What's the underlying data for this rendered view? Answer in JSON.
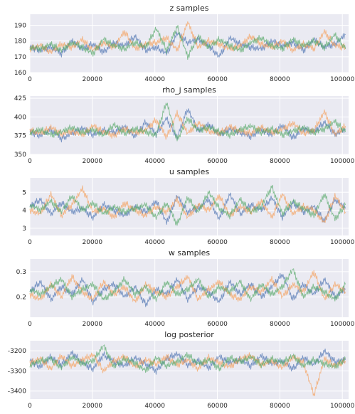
{
  "style": {
    "background": "#EAEAF2",
    "grid_color": "#ffffff",
    "chain_colors": [
      "#4C72B0",
      "#F5A05B",
      "#55A868"
    ]
  },
  "chart_data": [
    {
      "type": "line",
      "title": "z samples",
      "xlim": [
        0,
        102000
      ],
      "ylim": [
        160,
        197
      ],
      "x_ticks": [
        "0",
        "20000",
        "40000",
        "60000",
        "80000",
        "100000"
      ],
      "y_ticks": [
        "160",
        "170",
        "180",
        "190"
      ],
      "grid": true,
      "legend": "none",
      "series": [
        {
          "color": "#4C72B0",
          "values": [
            176,
            174,
            176,
            172,
            180,
            175,
            178,
            173,
            179,
            177,
            183,
            174,
            176,
            172,
            185,
            179,
            181,
            177,
            170,
            182,
            178,
            176,
            175,
            180,
            177,
            179,
            174,
            181,
            176,
            178,
            184
          ]
        },
        {
          "color": "#F5A05B",
          "values": [
            175,
            177,
            173,
            178,
            176,
            181,
            174,
            179,
            176,
            186,
            175,
            178,
            179,
            182,
            174,
            192,
            176,
            180,
            178,
            175,
            177,
            183,
            178,
            176,
            180,
            174,
            178,
            175,
            186,
            177,
            176
          ]
        },
        {
          "color": "#55A868",
          "values": [
            176,
            175,
            178,
            174,
            179,
            176,
            172,
            181,
            177,
            175,
            179,
            176,
            188,
            174,
            189,
            170,
            183,
            176,
            181,
            177,
            174,
            179,
            182,
            177,
            175,
            181,
            177,
            180,
            176,
            184,
            175
          ]
        }
      ]
    },
    {
      "type": "line",
      "title": "rho_j samples",
      "xlim": [
        0,
        102000
      ],
      "ylim": [
        350,
        428
      ],
      "x_ticks": [
        "0",
        "20000",
        "40000",
        "60000",
        "80000",
        "100000"
      ],
      "y_ticks": [
        "350",
        "375",
        "400",
        "425"
      ],
      "grid": true,
      "legend": "none",
      "series": [
        {
          "color": "#4C72B0",
          "values": [
            380,
            375,
            383,
            371,
            378,
            385,
            376,
            382,
            379,
            387,
            374,
            393,
            377,
            398,
            372,
            411,
            381,
            390,
            376,
            384,
            379,
            374,
            383,
            376,
            389,
            372,
            384,
            380,
            393,
            377,
            383
          ]
        },
        {
          "color": "#F5A05B",
          "values": [
            382,
            378,
            386,
            377,
            381,
            376,
            388,
            380,
            375,
            384,
            379,
            382,
            396,
            373,
            405,
            378,
            392,
            381,
            378,
            387,
            381,
            378,
            386,
            379,
            383,
            392,
            378,
            382,
            407,
            376,
            388
          ]
        },
        {
          "color": "#55A868",
          "values": [
            379,
            383,
            376,
            380,
            386,
            379,
            383,
            375,
            390,
            378,
            384,
            380,
            376,
            420,
            369,
            398,
            382,
            386,
            380,
            376,
            383,
            388,
            379,
            384,
            376,
            381,
            386,
            379,
            384,
            394,
            380
          ]
        }
      ]
    },
    {
      "type": "line",
      "title": "u samples",
      "xlim": [
        0,
        102000
      ],
      "ylim": [
        2.6,
        5.8
      ],
      "x_ticks": [
        "0",
        "20000",
        "40000",
        "60000",
        "80000",
        "100000"
      ],
      "y_ticks": [
        "3",
        "4",
        "5"
      ],
      "grid": true,
      "legend": "none",
      "series": [
        {
          "color": "#4C72B0",
          "values": [
            4.2,
            4.6,
            3.8,
            4.4,
            3.9,
            4.1,
            3.6,
            4.3,
            4.0,
            3.7,
            4.2,
            3.9,
            4.5,
            3.3,
            4.8,
            3.9,
            4.1,
            4.6,
            3.5,
            4.9,
            3.8,
            4.3,
            4.0,
            4.7,
            3.6,
            4.4,
            3.9,
            4.2,
            3.4,
            4.6,
            4.1
          ]
        },
        {
          "color": "#F5A05B",
          "values": [
            4.0,
            3.8,
            4.9,
            3.7,
            4.3,
            5.2,
            3.9,
            4.1,
            3.6,
            4.4,
            4.0,
            3.7,
            4.2,
            3.9,
            4.6,
            3.6,
            4.3,
            4.0,
            4.8,
            3.7,
            4.2,
            3.9,
            4.5,
            3.6,
            4.9,
            3.8,
            4.2,
            4.0,
            3.3,
            4.8,
            3.9
          ]
        },
        {
          "color": "#55A868",
          "values": [
            4.3,
            4.0,
            4.5,
            3.9,
            4.8,
            4.0,
            4.4,
            3.8,
            4.2,
            3.9,
            4.1,
            4.3,
            3.6,
            4.4,
            3.2,
            4.7,
            3.9,
            5.0,
            4.1,
            3.7,
            4.6,
            3.9,
            4.2,
            5.3,
            3.8,
            4.5,
            4.1,
            3.7,
            4.9,
            3.5,
            4.3
          ]
        }
      ]
    },
    {
      "type": "line",
      "title": "w samples",
      "xlim": [
        0,
        102000
      ],
      "ylim": [
        0.12,
        0.35
      ],
      "x_ticks": [
        "0",
        "20000",
        "40000",
        "60000",
        "80000",
        "100000"
      ],
      "y_ticks": [
        "0.2",
        "0.3"
      ],
      "grid": true,
      "legend": "none",
      "series": [
        {
          "color": "#4C72B0",
          "values": [
            0.22,
            0.26,
            0.19,
            0.24,
            0.21,
            0.27,
            0.18,
            0.23,
            0.25,
            0.2,
            0.24,
            0.17,
            0.23,
            0.21,
            0.27,
            0.19,
            0.24,
            0.22,
            0.18,
            0.26,
            0.21,
            0.25,
            0.2,
            0.24,
            0.29,
            0.19,
            0.25,
            0.21,
            0.27,
            0.2,
            0.23
          ]
        },
        {
          "color": "#F5A05B",
          "values": [
            0.21,
            0.19,
            0.25,
            0.2,
            0.28,
            0.22,
            0.19,
            0.26,
            0.21,
            0.24,
            0.18,
            0.25,
            0.22,
            0.2,
            0.24,
            0.28,
            0.19,
            0.23,
            0.26,
            0.21,
            0.19,
            0.24,
            0.22,
            0.27,
            0.2,
            0.25,
            0.22,
            0.3,
            0.19,
            0.25,
            0.22
          ]
        },
        {
          "color": "#55A868",
          "values": [
            0.23,
            0.21,
            0.24,
            0.27,
            0.2,
            0.23,
            0.25,
            0.19,
            0.22,
            0.27,
            0.21,
            0.24,
            0.19,
            0.26,
            0.21,
            0.23,
            0.27,
            0.2,
            0.24,
            0.22,
            0.26,
            0.19,
            0.25,
            0.21,
            0.24,
            0.31,
            0.2,
            0.24,
            0.22,
            0.19,
            0.25
          ]
        }
      ]
    },
    {
      "type": "line",
      "title": "log posterior",
      "xlim": [
        0,
        102000
      ],
      "ylim": [
        -3440,
        -3150
      ],
      "x_ticks": [
        "0",
        "20000",
        "40000",
        "60000",
        "80000",
        "100000"
      ],
      "y_ticks": [
        "-3200",
        "-3300",
        "-3400"
      ],
      "grid": true,
      "legend": "none",
      "series": [
        {
          "color": "#4C72B0",
          "values": [
            -3250,
            -3280,
            -3230,
            -3270,
            -3210,
            -3260,
            -3290,
            -3220,
            -3255,
            -3275,
            -3235,
            -3265,
            -3300,
            -3240,
            -3215,
            -3270,
            -3250,
            -3285,
            -3230,
            -3260,
            -3245,
            -3275,
            -3225,
            -3265,
            -3250,
            -3290,
            -3235,
            -3270,
            -3200,
            -3255,
            -3245
          ]
        },
        {
          "color": "#F5A05B",
          "values": [
            -3260,
            -3240,
            -3290,
            -3225,
            -3275,
            -3245,
            -3220,
            -3300,
            -3250,
            -3230,
            -3280,
            -3245,
            -3265,
            -3230,
            -3270,
            -3245,
            -3290,
            -3235,
            -3260,
            -3280,
            -3240,
            -3225,
            -3270,
            -3250,
            -3285,
            -3230,
            -3260,
            -3420,
            -3240,
            -3275,
            -3250
          ]
        },
        {
          "color": "#55A868",
          "values": [
            -3270,
            -3250,
            -3240,
            -3285,
            -3230,
            -3265,
            -3250,
            -3175,
            -3280,
            -3240,
            -3260,
            -3300,
            -3235,
            -3275,
            -3255,
            -3220,
            -3265,
            -3245,
            -3290,
            -3235,
            -3255,
            -3230,
            -3270,
            -3240,
            -3260,
            -3225,
            -3275,
            -3245,
            -3265,
            -3280,
            -3240
          ]
        }
      ]
    }
  ]
}
